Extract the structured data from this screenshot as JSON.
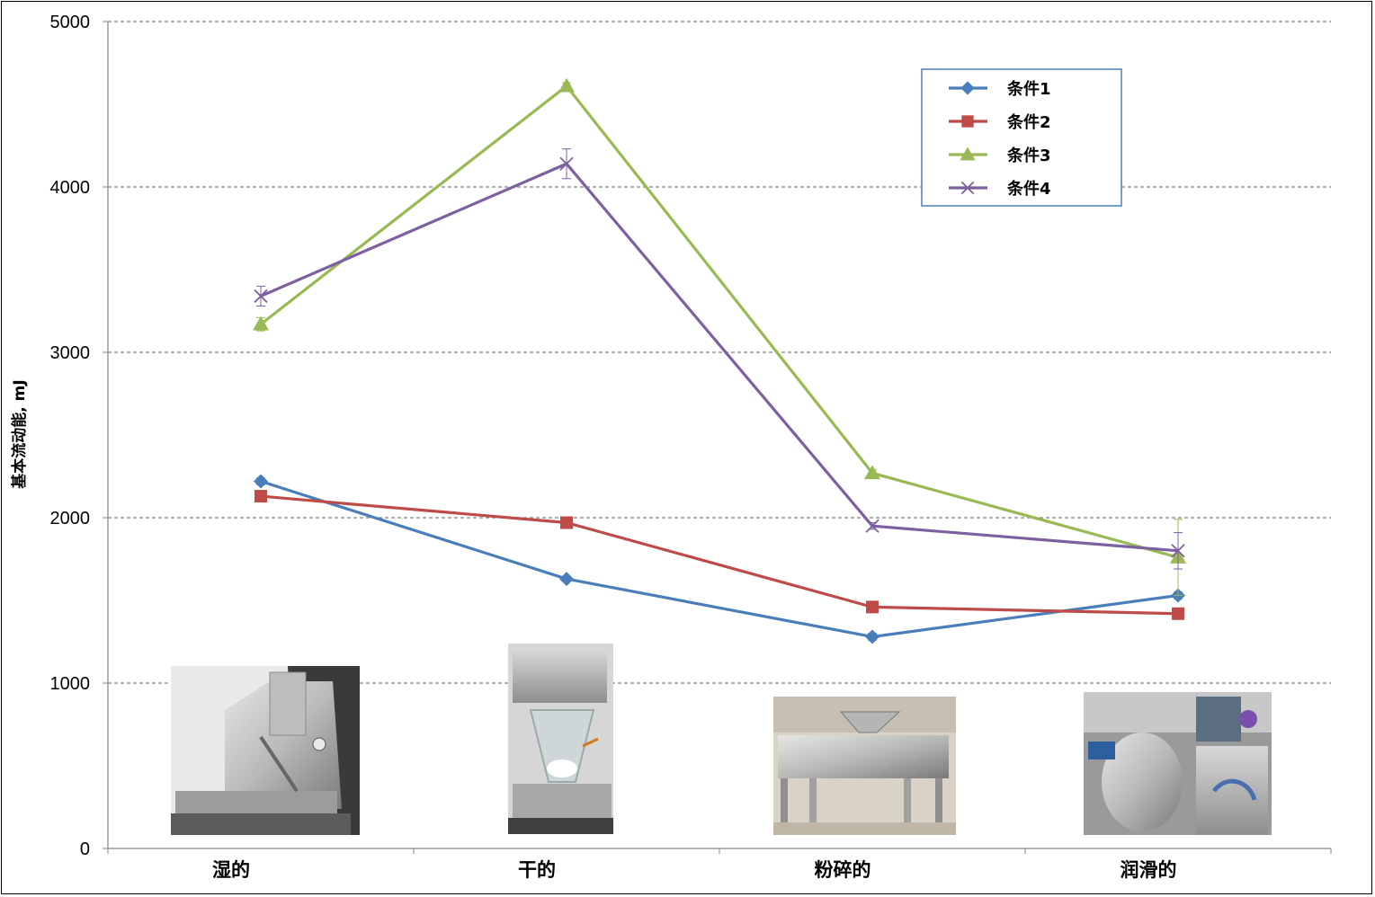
{
  "chart_data": {
    "type": "line",
    "ylabel": "基本流动能, mJ",
    "xlabel": "",
    "ylim": [
      0,
      5000
    ],
    "yticks": [
      0,
      1000,
      2000,
      3000,
      4000,
      5000
    ],
    "categories": [
      "湿的",
      "干的",
      "粉碎的",
      "润滑的"
    ],
    "grid": "horizontal dashed",
    "legend_position": "top-right",
    "series": [
      {
        "name": "条件1",
        "color": "#4a7ebb",
        "marker": "diamond",
        "values": [
          2220,
          1630,
          1280,
          1530
        ],
        "errors": [
          20,
          15,
          20,
          20
        ]
      },
      {
        "name": "条件2",
        "color": "#be4b48",
        "marker": "square",
        "values": [
          2130,
          1970,
          1460,
          1420
        ],
        "errors": [
          15,
          15,
          15,
          15
        ]
      },
      {
        "name": "条件3",
        "color": "#98b954",
        "marker": "triangle",
        "values": [
          3170,
          4610,
          2270,
          1760
        ],
        "errors": [
          40,
          20,
          20,
          230
        ]
      },
      {
        "name": "条件4",
        "color": "#7d60a0",
        "marker": "x",
        "values": [
          3340,
          4140,
          1950,
          1800
        ],
        "errors": [
          60,
          90,
          20,
          110
        ]
      }
    ],
    "images": [
      {
        "category": "湿的",
        "icon": "wet-granulation-equipment-photo"
      },
      {
        "category": "干的",
        "icon": "dryer-equipment-photo"
      },
      {
        "category": "粉碎的",
        "icon": "mill-equipment-photo"
      },
      {
        "category": "润滑的",
        "icon": "blender-equipment-photo"
      }
    ]
  }
}
